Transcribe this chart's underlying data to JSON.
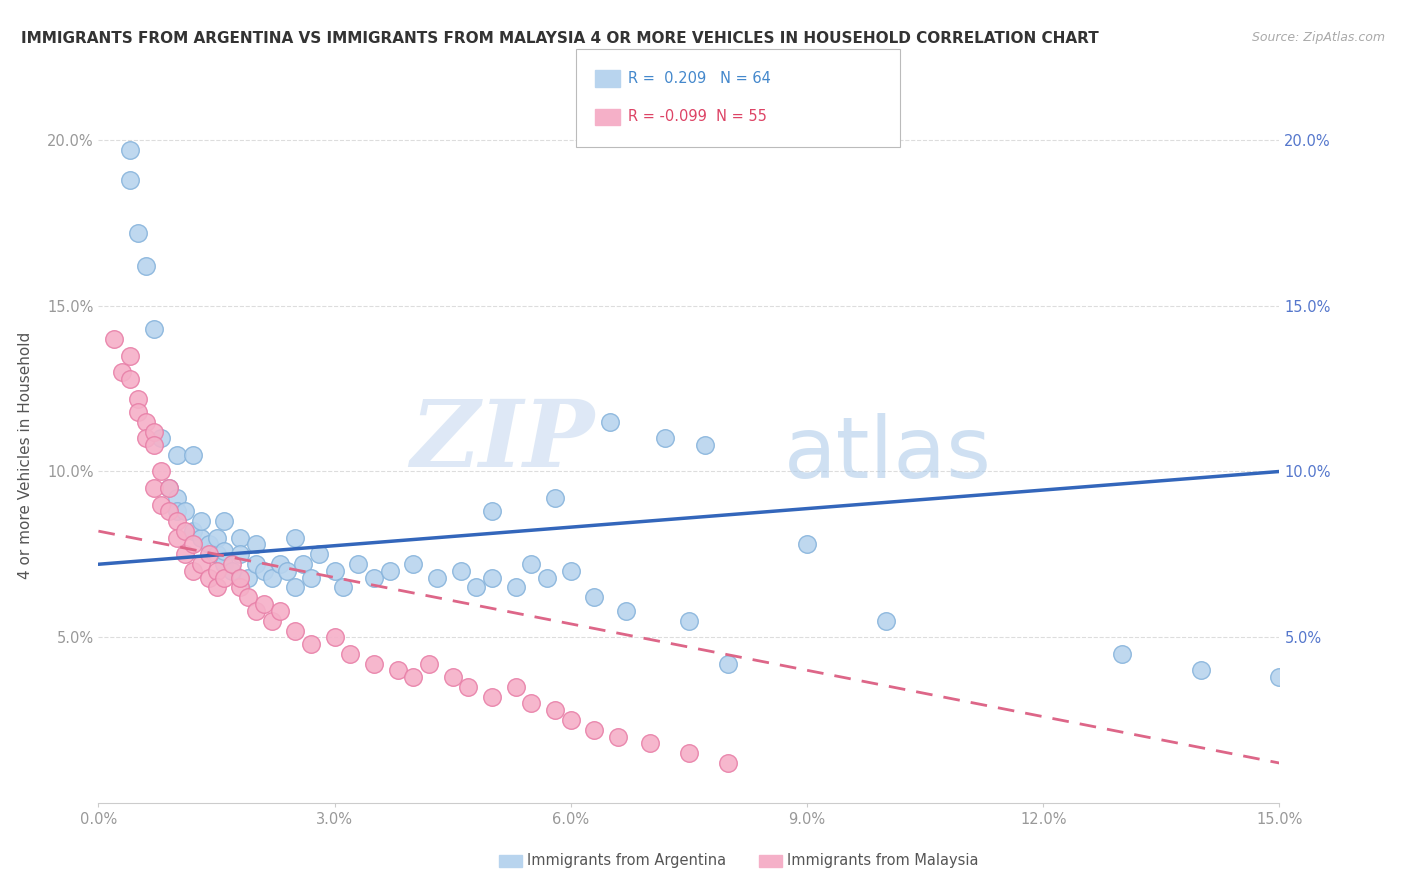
{
  "title": "IMMIGRANTS FROM ARGENTINA VS IMMIGRANTS FROM MALAYSIA 4 OR MORE VEHICLES IN HOUSEHOLD CORRELATION CHART",
  "source": "Source: ZipAtlas.com",
  "ylabel": "4 or more Vehicles in Household",
  "xlim": [
    0.0,
    0.15
  ],
  "ylim": [
    0.0,
    0.21
  ],
  "xticks": [
    0.0,
    0.03,
    0.06,
    0.09,
    0.12,
    0.15
  ],
  "xtick_labels": [
    "0.0%",
    "3.0%",
    "6.0%",
    "9.0%",
    "12.0%",
    "15.0%"
  ],
  "yticks": [
    0.05,
    0.1,
    0.15,
    0.2
  ],
  "ytick_labels": [
    "5.0%",
    "10.0%",
    "15.0%",
    "20.0%"
  ],
  "right_yticks": [
    0.05,
    0.1,
    0.15,
    0.2
  ],
  "right_ytick_labels": [
    "5.0%",
    "10.0%",
    "15.0%",
    "20.0%"
  ],
  "argentina_color": "#b8d4ee",
  "malaysia_color": "#f5b0c8",
  "argentina_edge": "#88b4dc",
  "malaysia_edge": "#e880a8",
  "trend_argentina_color": "#3366bb",
  "trend_malaysia_color": "#dd6688",
  "trend_arg_x0": 0.0,
  "trend_arg_y0": 0.072,
  "trend_arg_x1": 0.15,
  "trend_arg_y1": 0.1,
  "trend_mal_x0": 0.0,
  "trend_mal_y0": 0.082,
  "trend_mal_x1": 0.15,
  "trend_mal_y1": 0.012,
  "legend_R_argentina": "R =  0.209",
  "legend_N_argentina": "N = 64",
  "legend_R_malaysia": "R = -0.099",
  "legend_N_malaysia": "N = 55",
  "watermark_zip": "ZIP",
  "watermark_atlas": "atlas",
  "argentina_x": [
    0.004,
    0.004,
    0.005,
    0.006,
    0.007,
    0.008,
    0.009,
    0.01,
    0.01,
    0.01,
    0.011,
    0.012,
    0.012,
    0.013,
    0.013,
    0.014,
    0.015,
    0.015,
    0.016,
    0.016,
    0.016,
    0.017,
    0.018,
    0.018,
    0.019,
    0.02,
    0.02,
    0.021,
    0.022,
    0.023,
    0.024,
    0.025,
    0.025,
    0.026,
    0.027,
    0.028,
    0.03,
    0.031,
    0.033,
    0.035,
    0.037,
    0.04,
    0.043,
    0.046,
    0.048,
    0.05,
    0.053,
    0.055,
    0.057,
    0.06,
    0.063,
    0.067,
    0.075,
    0.08,
    0.05,
    0.058,
    0.065,
    0.072,
    0.077,
    0.09,
    0.1,
    0.13,
    0.14,
    0.15
  ],
  "argentina_y": [
    0.197,
    0.188,
    0.172,
    0.162,
    0.143,
    0.11,
    0.095,
    0.092,
    0.088,
    0.105,
    0.088,
    0.082,
    0.105,
    0.08,
    0.085,
    0.078,
    0.075,
    0.08,
    0.072,
    0.076,
    0.085,
    0.07,
    0.08,
    0.075,
    0.068,
    0.072,
    0.078,
    0.07,
    0.068,
    0.072,
    0.07,
    0.065,
    0.08,
    0.072,
    0.068,
    0.075,
    0.07,
    0.065,
    0.072,
    0.068,
    0.07,
    0.072,
    0.068,
    0.07,
    0.065,
    0.068,
    0.065,
    0.072,
    0.068,
    0.07,
    0.062,
    0.058,
    0.055,
    0.042,
    0.088,
    0.092,
    0.115,
    0.11,
    0.108,
    0.078,
    0.055,
    0.045,
    0.04,
    0.038
  ],
  "malaysia_x": [
    0.002,
    0.003,
    0.004,
    0.004,
    0.005,
    0.005,
    0.006,
    0.006,
    0.007,
    0.007,
    0.007,
    0.008,
    0.008,
    0.009,
    0.009,
    0.01,
    0.01,
    0.011,
    0.011,
    0.012,
    0.012,
    0.013,
    0.014,
    0.014,
    0.015,
    0.015,
    0.016,
    0.017,
    0.018,
    0.018,
    0.019,
    0.02,
    0.021,
    0.022,
    0.023,
    0.025,
    0.027,
    0.03,
    0.032,
    0.035,
    0.038,
    0.04,
    0.042,
    0.045,
    0.047,
    0.05,
    0.053,
    0.055,
    0.058,
    0.06,
    0.063,
    0.066,
    0.07,
    0.075,
    0.08
  ],
  "malaysia_y": [
    0.14,
    0.13,
    0.135,
    0.128,
    0.122,
    0.118,
    0.115,
    0.11,
    0.112,
    0.108,
    0.095,
    0.1,
    0.09,
    0.088,
    0.095,
    0.085,
    0.08,
    0.082,
    0.075,
    0.078,
    0.07,
    0.072,
    0.075,
    0.068,
    0.07,
    0.065,
    0.068,
    0.072,
    0.065,
    0.068,
    0.062,
    0.058,
    0.06,
    0.055,
    0.058,
    0.052,
    0.048,
    0.05,
    0.045,
    0.042,
    0.04,
    0.038,
    0.042,
    0.038,
    0.035,
    0.032,
    0.035,
    0.03,
    0.028,
    0.025,
    0.022,
    0.02,
    0.018,
    0.015,
    0.012
  ]
}
